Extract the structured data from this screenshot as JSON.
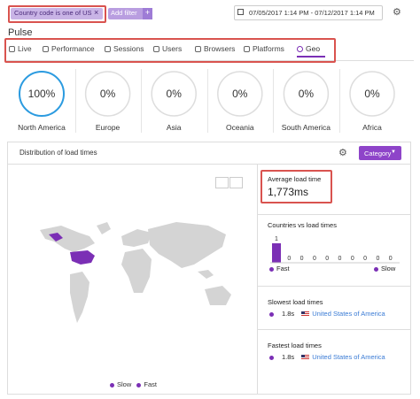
{
  "filters": {
    "chip": "Country code is one of US",
    "add": "Add filter",
    "date_range": "07/05/2017 1:14 PM - 07/12/2017 1:14 PM"
  },
  "page_title": "Pulse",
  "tabs": [
    "Live",
    "Performance",
    "Sessions",
    "Users",
    "Browsers",
    "Platforms",
    "Geo"
  ],
  "regions": [
    {
      "value": "100%",
      "label": "North America"
    },
    {
      "value": "0%",
      "label": "Europe"
    },
    {
      "value": "0%",
      "label": "Asia"
    },
    {
      "value": "0%",
      "label": "Oceania"
    },
    {
      "value": "0%",
      "label": "South America"
    },
    {
      "value": "0%",
      "label": "Africa"
    }
  ],
  "panel": {
    "title": "Distribution of load times",
    "button": "Category",
    "legend": [
      "Slow",
      "Fast"
    ],
    "average": {
      "title": "Average load time",
      "value": "1,773ms"
    },
    "countries_chart": {
      "title": "Countries vs load times",
      "values": [
        1,
        0,
        0,
        0,
        0,
        0,
        0,
        0,
        0,
        0
      ],
      "left": "Fast",
      "right": "Slow"
    },
    "slowest": {
      "title": "Slowest load times",
      "time": "1.8s",
      "country": "United States of America"
    },
    "fastest": {
      "title": "Fastest load times",
      "time": "1.8s",
      "country": "United States of America"
    }
  }
}
